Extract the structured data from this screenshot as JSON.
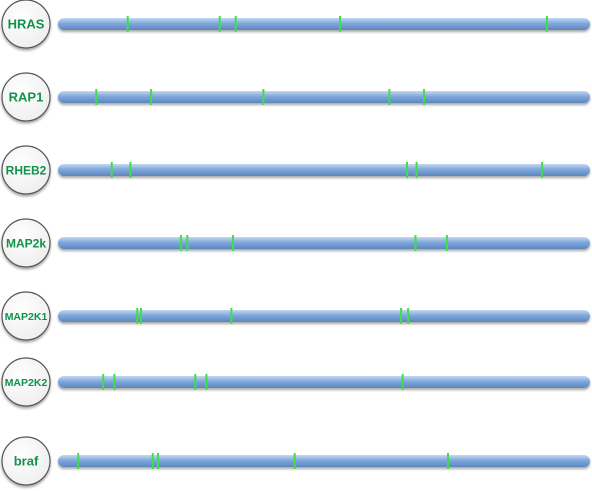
{
  "diagram": {
    "title": "",
    "track_length": 1.0,
    "colors": {
      "track_fill": "#7fa7dc",
      "track_highlight": "#c4d9f3",
      "track_edge": "#5c86be",
      "marker": "#3ee04a",
      "label_text": "#11924a",
      "node_fill": "#eeeeee",
      "node_stroke": "#555555"
    },
    "genes": [
      {
        "name": "HRAS",
        "markers": [
          0.131,
          0.304,
          0.334,
          0.53,
          0.919
        ]
      },
      {
        "name": "RAP1",
        "markers": [
          0.072,
          0.175,
          0.386,
          0.623,
          0.688
        ]
      },
      {
        "name": "RHEB2",
        "markers": [
          0.101,
          0.136,
          0.656,
          0.674,
          0.91
        ]
      },
      {
        "name": "MAP2k",
        "markers": [
          0.231,
          0.243,
          0.329,
          0.672,
          0.731
        ]
      },
      {
        "name": "MAP2K1",
        "markers": [
          0.149,
          0.156,
          0.326,
          0.645,
          0.658
        ]
      },
      {
        "name": "MAP2K2",
        "markers": [
          0.085,
          0.106,
          0.258,
          0.279,
          0.648
        ]
      },
      {
        "name": "braf",
        "markers": [
          0.038,
          0.178,
          0.188,
          0.445,
          0.733
        ]
      }
    ]
  }
}
